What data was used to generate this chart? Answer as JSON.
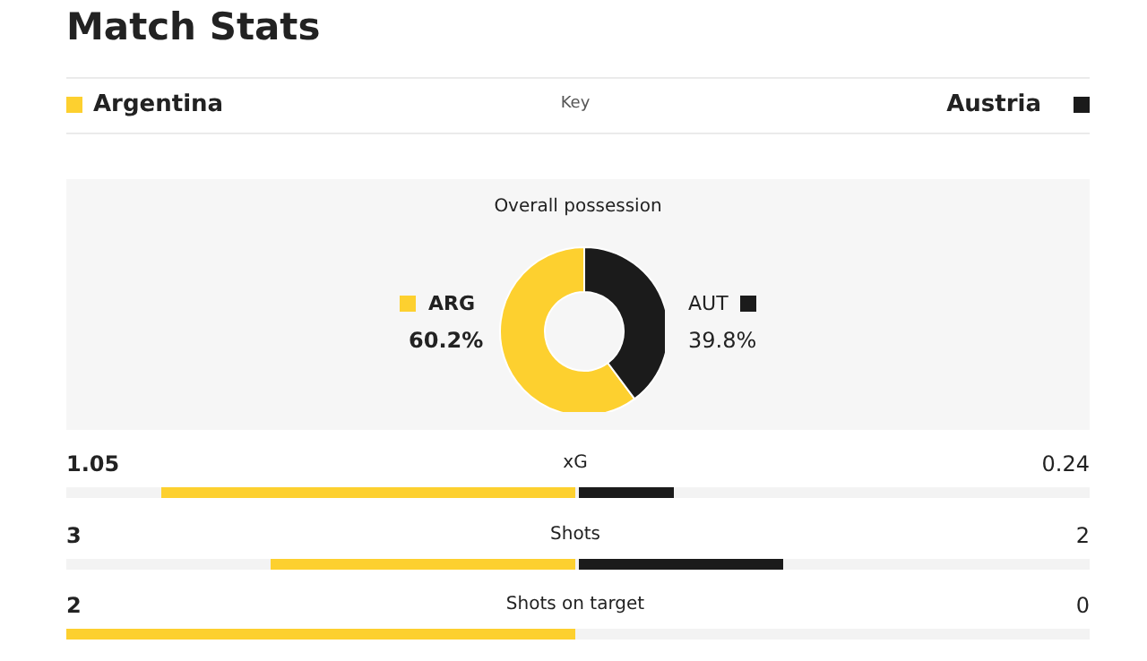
{
  "chart_data": [
    {
      "type": "donut",
      "title": "Overall possession",
      "categories": [
        "ARG",
        "AUT"
      ],
      "values": [
        60.2,
        39.8
      ],
      "colors": [
        "#fdd02f",
        "#1b1b1b"
      ],
      "value_labels": [
        "60.2%",
        "39.8%"
      ]
    },
    {
      "type": "other",
      "title": "Match Stats",
      "legend_title": "Key",
      "legend": "top",
      "categories": [
        "xG",
        "Shots",
        "Shots on target"
      ],
      "data_labels": true,
      "series": [
        {
          "name": "Argentina",
          "color": "#fdd02f",
          "values": [
            1.05,
            3,
            2
          ]
        },
        {
          "name": "Austria",
          "color": "#1b1b1b",
          "values": [
            0.24,
            2,
            0
          ]
        }
      ]
    }
  ]
}
